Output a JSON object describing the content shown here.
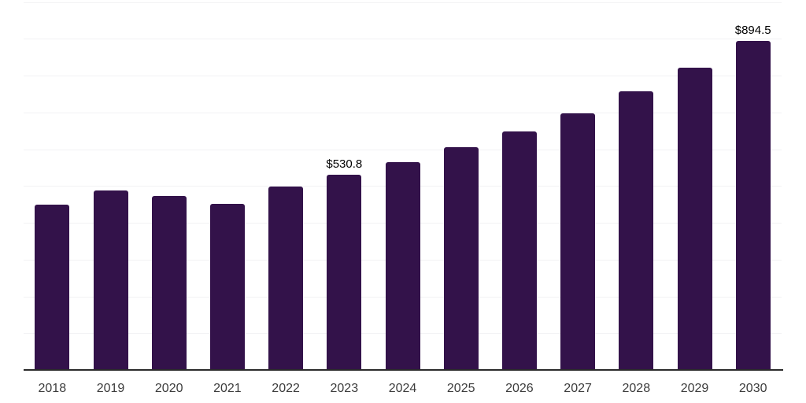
{
  "chart_data": {
    "type": "bar",
    "categories": [
      "2018",
      "2019",
      "2020",
      "2021",
      "2022",
      "2023",
      "2024",
      "2025",
      "2026",
      "2027",
      "2028",
      "2029",
      "2030"
    ],
    "values": [
      450,
      487,
      474,
      452,
      499,
      530.8,
      565,
      606,
      649,
      697,
      757,
      822,
      894.5
    ],
    "data_labels": [
      {
        "category": "2023",
        "text": "$530.8"
      },
      {
        "category": "2030",
        "text": "$894.5"
      }
    ],
    "title": "",
    "xlabel": "",
    "ylabel": "",
    "ylim": [
      0,
      1000
    ],
    "gridline_step": 100,
    "grid": "horizontal-only",
    "y_tick_labels_visible": false,
    "legend": "none",
    "colors": {
      "bar": "#33124a",
      "gridline": "#f2f2f4",
      "axis_line": "#2b2b2b",
      "tick_label": "#3c3c3c",
      "data_label": "#000000",
      "background": "#ffffff"
    }
  }
}
